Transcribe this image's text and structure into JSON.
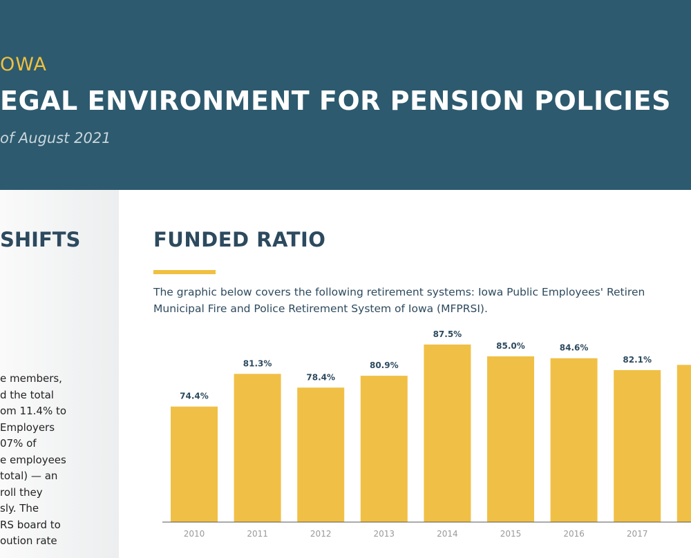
{
  "header": {
    "state": "OWA",
    "title": "EGAL ENVIRONMENT FOR PENSION POLICIES",
    "subtitle": "of August 2021"
  },
  "sidebar": {
    "heading": "SHIFTS",
    "lines": [
      "e members,",
      "d the total",
      "om 11.4% to",
      "Employers",
      "07% of",
      "e employees",
      "total) — an",
      "roll they",
      "sly. The",
      "RS board to",
      "oution rate"
    ]
  },
  "main": {
    "heading": "FUNDED RATIO",
    "description": [
      "The graphic below covers the following retirement systems: Iowa Public Employees' Retiren",
      "Municipal Fire and Police Retirement System of Iowa (MFPRSI)."
    ]
  },
  "chart_data": {
    "type": "bar",
    "categories": [
      "2010",
      "2011",
      "2012",
      "2013",
      "2014",
      "2015",
      "2016",
      "2017",
      null
    ],
    "values": [
      74.4,
      81.3,
      78.4,
      80.9,
      87.5,
      85.0,
      84.6,
      82.1,
      83.2
    ],
    "value_labels": [
      "74.4%",
      "81.3%",
      "78.4%",
      "80.9%",
      "87.5%",
      "85.0%",
      "84.6%",
      "82.1%",
      null
    ],
    "color": "#f0c046",
    "ylim": [
      50,
      92
    ]
  }
}
